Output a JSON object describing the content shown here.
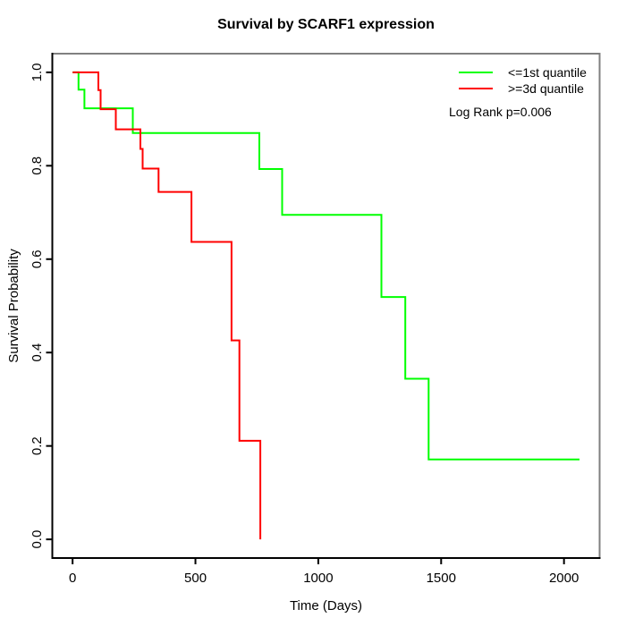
{
  "figure": {
    "annotation": "Log Rank p=0.006"
  },
  "chart_data": {
    "type": "line",
    "subtype": "kaplan-meier-step-curves",
    "title": "Survival by SCARF1 expression",
    "xlabel": "Time (Days)",
    "ylabel": "Survival Probability",
    "xlim": [
      0,
      2063
    ],
    "ylim": [
      0.0,
      1.0
    ],
    "x_ticks": [
      0,
      500,
      1000,
      1500,
      2000
    ],
    "y_ticks": [
      0.0,
      0.2,
      0.4,
      0.6,
      0.8,
      1.0
    ],
    "grid": false,
    "legend_position": "top-right",
    "annotation": "Log Rank p=0.006",
    "series": [
      {
        "name": "<=1st quantile",
        "color": "#00FF00",
        "steps": [
          [
            0,
            1.0
          ],
          [
            24,
            0.963
          ],
          [
            48,
            0.923
          ],
          [
            245,
            0.87
          ],
          [
            760,
            0.793
          ],
          [
            853,
            0.695
          ],
          [
            1257,
            0.519
          ],
          [
            1354,
            0.344
          ],
          [
            1449,
            0.171
          ],
          [
            2063,
            0.171
          ]
        ]
      },
      {
        "name": ">=3d quantile",
        "color": "#FF0000",
        "steps": [
          [
            0,
            1.0
          ],
          [
            105,
            0.962
          ],
          [
            114,
            0.921
          ],
          [
            176,
            0.878
          ],
          [
            276,
            0.836
          ],
          [
            285,
            0.794
          ],
          [
            350,
            0.744
          ],
          [
            484,
            0.637
          ],
          [
            647,
            0.426
          ],
          [
            679,
            0.211
          ],
          [
            764,
            0.0
          ]
        ]
      }
    ]
  }
}
